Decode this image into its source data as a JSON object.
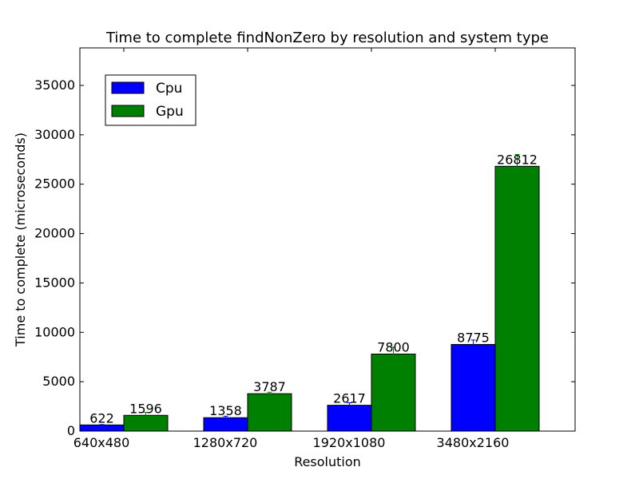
{
  "chart_data": {
    "type": "bar",
    "title": "Time to complete findNonZero by resolution and system type",
    "xlabel": "Resolution",
    "ylabel": "Time to complete (microseconds)",
    "categories": [
      "640x480",
      "1280x720",
      "1920x1080",
      "3480x2160"
    ],
    "series": [
      {
        "name": "Cpu",
        "color": "#0000ff",
        "values": [
          622,
          1358,
          2617,
          8775
        ],
        "errors": [
          40,
          150,
          250,
          450
        ]
      },
      {
        "name": "Gpu",
        "color": "#008000",
        "values": [
          1596,
          3787,
          7800,
          26812
        ],
        "errors": [
          300,
          150,
          700,
          1200
        ]
      }
    ],
    "ylim": [
      0,
      38800
    ],
    "yticks": [
      0,
      5000,
      10000,
      15000,
      20000,
      25000,
      30000,
      35000
    ],
    "grid": false,
    "legend_position": "top-left"
  }
}
